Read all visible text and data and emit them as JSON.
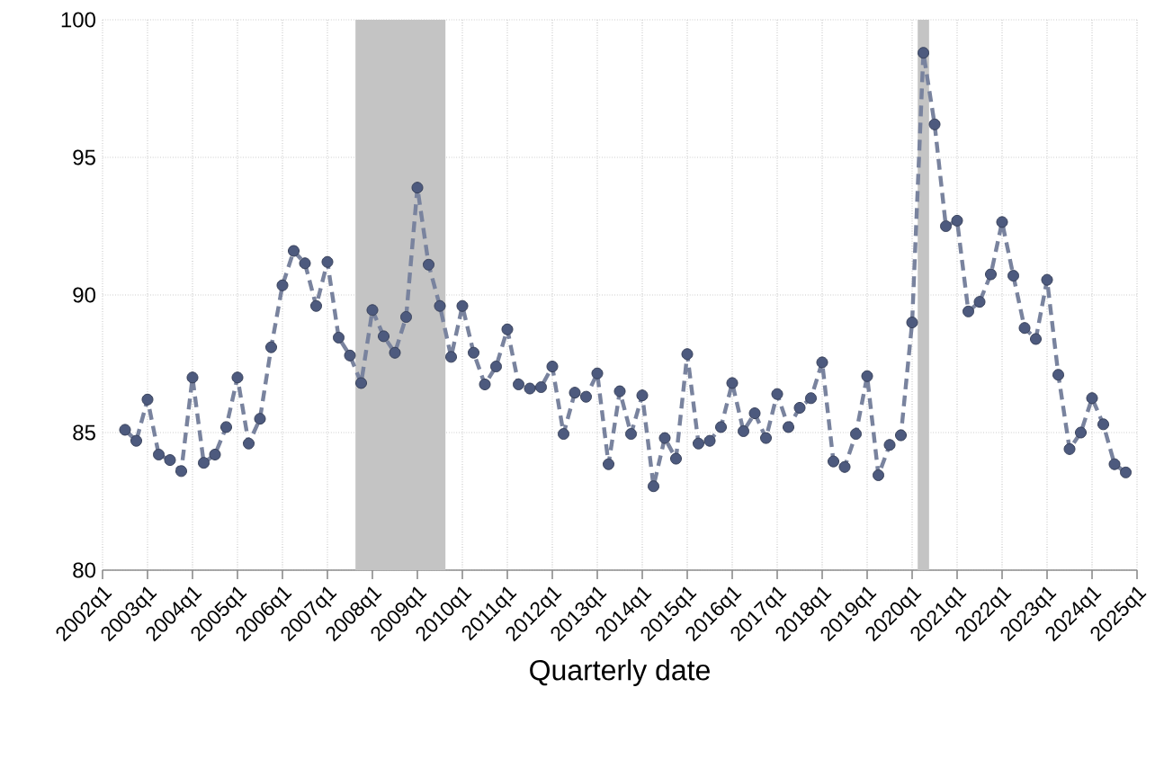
{
  "chart_data": {
    "type": "line",
    "xlabel": "Quarterly date",
    "color": "#4d5a7e",
    "marker": "circle",
    "line_style": "dashed",
    "grid": true,
    "xlim": [
      "2002-01",
      "2025-01"
    ],
    "ylim": [
      80,
      100
    ],
    "yticks": [
      80,
      85,
      90,
      95,
      100
    ],
    "xticks": [
      {
        "value": "2002-01",
        "label": "2002q1"
      },
      {
        "value": "2003-01",
        "label": "2003q1"
      },
      {
        "value": "2004-01",
        "label": "2004q1"
      },
      {
        "value": "2005-01",
        "label": "2005q1"
      },
      {
        "value": "2006-01",
        "label": "2006q1"
      },
      {
        "value": "2007-01",
        "label": "2007q1"
      },
      {
        "value": "2008-01",
        "label": "2008q1"
      },
      {
        "value": "2009-01",
        "label": "2009q1"
      },
      {
        "value": "2010-01",
        "label": "2010q1"
      },
      {
        "value": "2011-01",
        "label": "2011q1"
      },
      {
        "value": "2012-01",
        "label": "2012q1"
      },
      {
        "value": "2013-01",
        "label": "2013q1"
      },
      {
        "value": "2014-01",
        "label": "2014q1"
      },
      {
        "value": "2015-01",
        "label": "2015q1"
      },
      {
        "value": "2016-01",
        "label": "2016q1"
      },
      {
        "value": "2017-01",
        "label": "2017q1"
      },
      {
        "value": "2018-01",
        "label": "2018q1"
      },
      {
        "value": "2019-01",
        "label": "2019q1"
      },
      {
        "value": "2020-01",
        "label": "2020q1"
      },
      {
        "value": "2021-01",
        "label": "2021q1"
      },
      {
        "value": "2022-01",
        "label": "2022q1"
      },
      {
        "value": "2023-01",
        "label": "2023q1"
      },
      {
        "value": "2024-01",
        "label": "2024q1"
      },
      {
        "value": "2025-01",
        "label": "2025q1"
      }
    ],
    "bands": [
      {
        "axis": "x",
        "from": "2007-08-16",
        "to": "2009-08-16",
        "color": "#c4c4c4"
      },
      {
        "axis": "x",
        "from": "2020-02-15",
        "to": "2020-05-17",
        "color": "#c4c4c4"
      }
    ],
    "x": [
      "2002-07",
      "2002-10",
      "2003-01",
      "2003-04",
      "2003-07",
      "2003-10",
      "2004-01",
      "2004-04",
      "2004-07",
      "2004-10",
      "2005-01",
      "2005-04",
      "2005-07",
      "2005-10",
      "2006-01",
      "2006-04",
      "2006-07",
      "2006-10",
      "2007-01",
      "2007-04",
      "2007-07",
      "2007-10",
      "2008-01",
      "2008-04",
      "2008-07",
      "2008-10",
      "2009-01",
      "2009-04",
      "2009-07",
      "2009-10",
      "2010-01",
      "2010-04",
      "2010-07",
      "2010-10",
      "2011-01",
      "2011-04",
      "2011-07",
      "2011-10",
      "2012-01",
      "2012-04",
      "2012-07",
      "2012-10",
      "2013-01",
      "2013-04",
      "2013-07",
      "2013-10",
      "2014-01",
      "2014-04",
      "2014-07",
      "2014-10",
      "2015-01",
      "2015-04",
      "2015-07",
      "2015-10",
      "2016-01",
      "2016-04",
      "2016-07",
      "2016-10",
      "2017-01",
      "2017-04",
      "2017-07",
      "2017-10",
      "2018-01",
      "2018-04",
      "2018-07",
      "2018-10",
      "2019-01",
      "2019-04",
      "2019-07",
      "2019-10",
      "2020-01",
      "2020-04",
      "2020-07",
      "2020-10",
      "2021-01",
      "2021-04",
      "2021-07",
      "2021-10",
      "2022-01",
      "2022-04",
      "2022-07",
      "2022-10",
      "2023-01",
      "2023-04",
      "2023-07",
      "2023-10",
      "2024-01",
      "2024-04",
      "2024-07",
      "2024-10"
    ],
    "values": [
      85.1,
      84.7,
      86.2,
      84.2,
      84.0,
      83.6,
      87.0,
      83.9,
      84.2,
      85.2,
      87.0,
      84.6,
      85.5,
      88.1,
      90.35,
      91.6,
      91.15,
      89.6,
      91.2,
      88.45,
      87.8,
      86.8,
      89.45,
      88.5,
      87.9,
      89.2,
      93.9,
      91.1,
      89.6,
      87.75,
      89.6,
      87.9,
      86.75,
      87.4,
      88.75,
      86.75,
      86.6,
      86.65,
      87.4,
      84.95,
      86.45,
      86.3,
      87.15,
      83.85,
      86.5,
      84.95,
      86.35,
      83.05,
      84.8,
      84.05,
      87.85,
      84.6,
      84.7,
      85.2,
      86.8,
      85.05,
      85.7,
      84.8,
      86.4,
      85.2,
      85.9,
      86.25,
      87.55,
      83.95,
      83.75,
      84.95,
      87.05,
      83.45,
      84.55,
      84.9,
      89.0,
      98.8,
      96.2,
      92.5,
      92.7,
      89.4,
      89.75,
      90.75,
      92.65,
      90.7,
      88.8,
      88.4,
      90.55,
      87.1,
      84.4,
      85.0,
      86.25,
      85.3,
      83.85,
      83.55
    ]
  }
}
